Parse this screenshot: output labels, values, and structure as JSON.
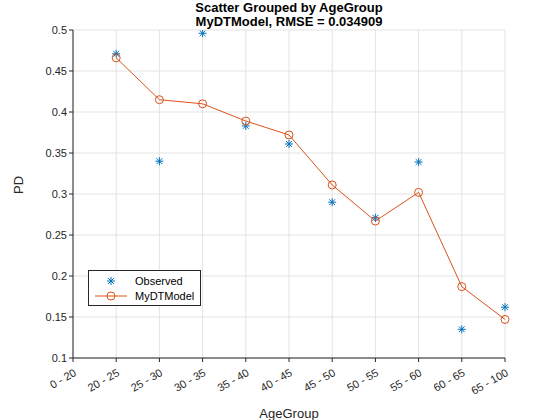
{
  "chart_data": {
    "type": "line",
    "title": "Scatter Grouped by AgeGroup",
    "subtitle": "MyDTModel, RMSE = 0.034909",
    "x_label": "AgeGroup",
    "y_label": "PD",
    "categories": [
      "0 - 20",
      "20 - 25",
      "25 - 30",
      "30 - 35",
      "35 - 40",
      "40 - 45",
      "45 - 50",
      "50 - 55",
      "55 - 60",
      "60 - 65",
      "65 - 100"
    ],
    "series": [
      {
        "name": "Observed",
        "type": "scatter",
        "color": "#0072bd",
        "marker": "asterisk",
        "line_style": "none",
        "values": [
          null,
          0.471,
          0.34,
          0.496,
          0.383,
          0.361,
          0.29,
          0.271,
          0.339,
          0.135,
          0.162
        ]
      },
      {
        "name": "MyDTModel",
        "type": "line",
        "color": "#d95319",
        "marker": "circle",
        "line_style": "solid",
        "values": [
          null,
          0.466,
          0.415,
          0.41,
          0.389,
          0.372,
          0.311,
          0.267,
          0.302,
          0.187,
          0.147
        ]
      }
    ],
    "ylim": [
      0.1,
      0.5
    ],
    "yticks": [
      0.1,
      0.15,
      0.2,
      0.25,
      0.3,
      0.35,
      0.4,
      0.45,
      0.5
    ],
    "grid": true,
    "legend": "southwest"
  }
}
